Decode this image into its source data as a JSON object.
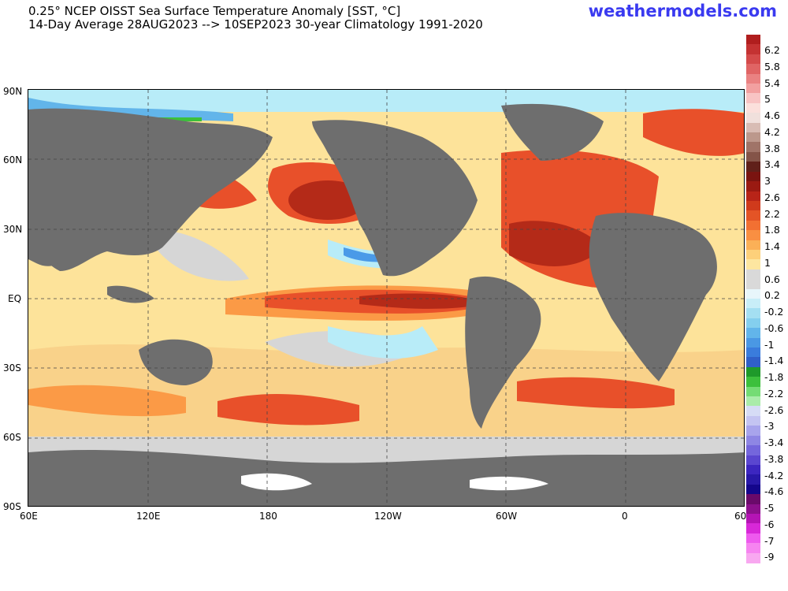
{
  "header": {
    "title_line1": "0.25° NCEP OISST Sea Surface Temperature Anomaly [SST, °C]",
    "title_line2": "14-Day Average 28AUG2023 --> 10SEP2023   30-year Climatology 1991-2020",
    "brand": "weathermodels.com"
  },
  "map": {
    "lat_labels": [
      "90N",
      "60N",
      "30N",
      "EQ",
      "30S",
      "60S",
      "90S"
    ],
    "lon_labels": [
      "60E",
      "120E",
      "180",
      "120W",
      "60W",
      "0",
      "60E"
    ],
    "colors": {
      "land": "#6e6e6e",
      "neutral": "#d6d6d6",
      "warm_light": "#fde39a",
      "warm_mid": "#fb9a46",
      "warm_strong": "#e8502a",
      "warm_deep": "#b42a18",
      "cool_light": "#b8ecf8",
      "cool_mid": "#4a9ae8",
      "ice": "#ffffff"
    }
  },
  "colorbar": {
    "labels": [
      "6.2",
      "5.8",
      "5.4",
      "5",
      "4.6",
      "4.2",
      "3.8",
      "3.4",
      "3",
      "2.6",
      "2.2",
      "1.8",
      "1.4",
      "1",
      "0.6",
      "0.2",
      "-0.2",
      "-0.6",
      "-1",
      "-1.4",
      "-1.8",
      "-2.2",
      "-2.6",
      "-3",
      "-3.4",
      "-3.8",
      "-4.2",
      "-4.6",
      "-5",
      "-6",
      "-7",
      "-9"
    ],
    "colors": [
      "#b01e1e",
      "#c43232",
      "#d44a4a",
      "#e06464",
      "#ea8282",
      "#f2a0a0",
      "#f8c4c4",
      "#fbe0dc",
      "#f0e0dc",
      "#d8bcb4",
      "#bc988c",
      "#a07468",
      "#845448",
      "#60201a",
      "#7a1410",
      "#9a1a12",
      "#b82418",
      "#d03a1c",
      "#e45426",
      "#f27032",
      "#f98f42",
      "#fbb057",
      "#fdd07a",
      "#fde6a0",
      "#d9d9d9",
      "#d9d9d9",
      "#e8f6fb",
      "#c8eef8",
      "#a4dff2",
      "#84cfee",
      "#62b5ea",
      "#4a98e4",
      "#3a7cdc",
      "#3060c8",
      "#1e9a2a",
      "#3cc03c",
      "#74dc74",
      "#aaecaa",
      "#d6dcf6",
      "#c4c4f2",
      "#a8a4ec",
      "#8e86e4",
      "#7466dc",
      "#5a46d0",
      "#3c26c0",
      "#2818a8",
      "#14068c",
      "#6a0a6a",
      "#8c108c",
      "#b414b4",
      "#d828d8",
      "#ee5aee",
      "#f684f0",
      "#f8a8f0"
    ]
  }
}
